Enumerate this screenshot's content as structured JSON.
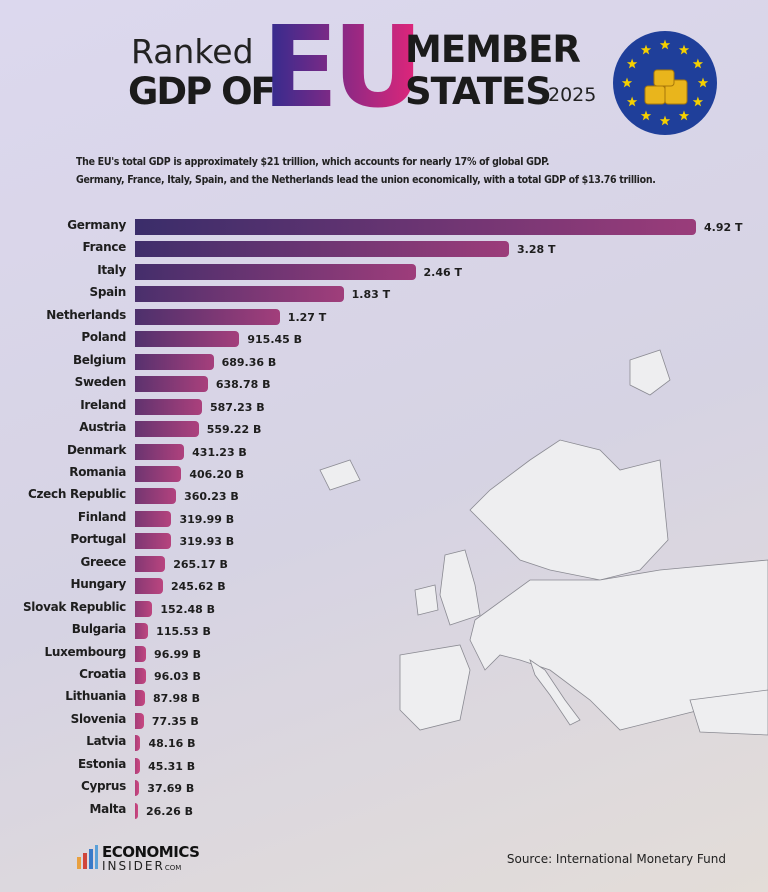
{
  "title": {
    "ranked": "Ranked",
    "gdp_of": "GDP OF",
    "eu": "EU",
    "member": "MEMBER",
    "states": "STATES",
    "year": "2025"
  },
  "subtitle": [
    "The EU's total GDP is approximately $21 trillion, which accounts for nearly 17% of global GDP.",
    "Germany, France, Italy, Spain, and the Netherlands lead the union economically, with a total GDP of $13.76 trillion."
  ],
  "source": "Source: International Monetary Fund",
  "logo": {
    "line1": "ECONOMICS",
    "line2": "INSIDER",
    "suffix": "COM"
  },
  "colors": {
    "bar_top": "#3a2d6a",
    "bar_bottom": "#c8457c",
    "flag_blue": "#1f3f9a",
    "star": "#f5d000"
  },
  "chart_data": {
    "type": "bar",
    "orientation": "horizontal",
    "unit": "USD billions",
    "categories": [
      "Germany",
      "France",
      "Italy",
      "Spain",
      "Netherlands",
      "Poland",
      "Belgium",
      "Sweden",
      "Ireland",
      "Austria",
      "Denmark",
      "Romania",
      "Czech Republic",
      "Finland",
      "Portugal",
      "Greece",
      "Hungary",
      "Slovak Republic",
      "Bulgaria",
      "Luxembourg",
      "Croatia",
      "Lithuania",
      "Slovenia",
      "Latvia",
      "Estonia",
      "Cyprus",
      "Malta"
    ],
    "values": [
      4920,
      3280,
      2460,
      1830,
      1270,
      915.45,
      689.36,
      638.78,
      587.23,
      559.22,
      431.23,
      406.2,
      360.23,
      319.99,
      319.93,
      265.17,
      245.62,
      152.48,
      115.53,
      96.99,
      96.03,
      87.98,
      77.35,
      48.16,
      45.31,
      37.69,
      26.26
    ],
    "data_labels": [
      "4.92 T",
      "3.28 T",
      "2.46 T",
      "1.83 T",
      "1.27 T",
      "915.45 B",
      "689.36 B",
      "638.78 B",
      "587.23 B",
      "559.22 B",
      "431.23 B",
      "406.20 B",
      "360.23 B",
      "319.99 B",
      "319.93 B",
      "265.17 B",
      "245.62 B",
      "152.48 B",
      "115.53 B",
      "96.99 B",
      "96.03 B",
      "87.98 B",
      "77.35 B",
      "48.16 B",
      "45.31 B",
      "37.69 B",
      "26.26 B"
    ],
    "xlim": [
      0,
      4920
    ],
    "grid": false,
    "legend": "none"
  }
}
